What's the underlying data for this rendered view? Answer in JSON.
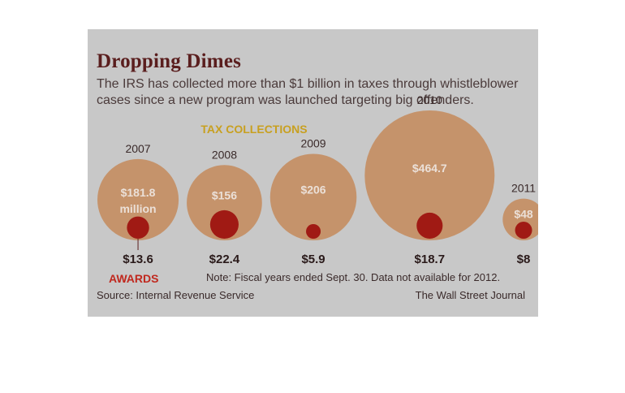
{
  "chart_data": {
    "type": "bubble",
    "title": "Dropping Dimes",
    "subtitle": "The IRS has collected more than $1 billion in taxes through whistleblower cases since a new program was launched targeting big offenders.",
    "legend": {
      "tax_collections": "TAX COLLECTIONS",
      "awards": "AWARDS"
    },
    "categories": [
      "2007",
      "2008",
      "2009",
      "2010",
      "2011"
    ],
    "series": [
      {
        "name": "TAX COLLECTIONS",
        "values": [
          181.8,
          156,
          206,
          464.7,
          48
        ]
      },
      {
        "name": "AWARDS",
        "values": [
          13.6,
          22.4,
          5.9,
          18.7,
          8
        ]
      }
    ],
    "collection_labels": [
      "$181.8",
      "$156",
      "$206",
      "$464.7",
      "$48"
    ],
    "collection_unit_label": "million",
    "award_labels": [
      "$13.6",
      "$22.4",
      "$5.9",
      "$18.7",
      "$8"
    ],
    "colors": {
      "collection_bubble": "#c48a5a",
      "award_bubble": "#a01a14",
      "year_text": "#3a2a2a",
      "award_text": "#2a1a1a",
      "awards_legend": "#c0281e",
      "collections_legend": "#c8a020"
    },
    "note": "Note: Fiscal years ended Sept. 30. Data not available for 2012.",
    "source": "Source: Internal Revenue Service",
    "credit": "The Wall Street Journal"
  }
}
